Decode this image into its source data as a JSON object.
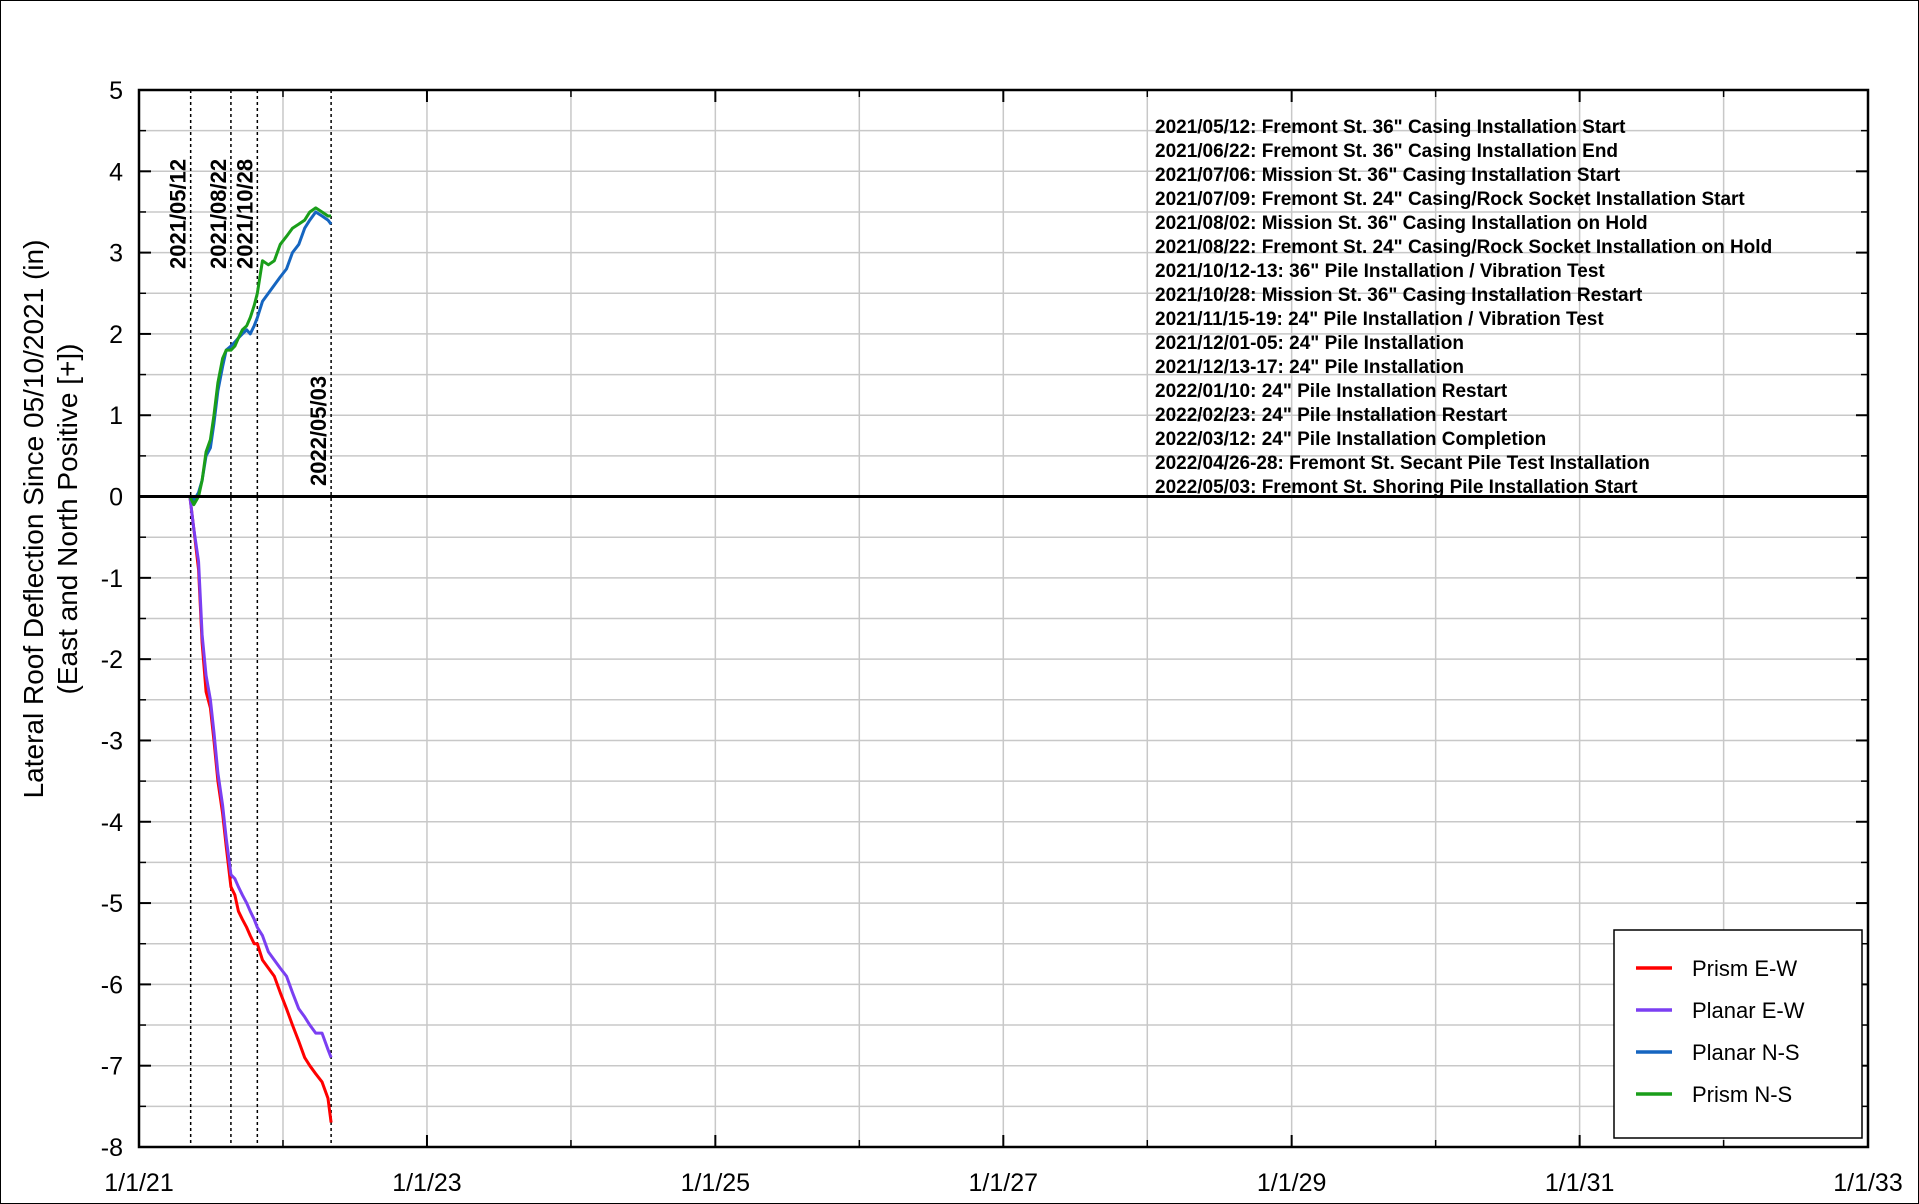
{
  "chart_data": {
    "type": "line",
    "title": "",
    "xlabel": "",
    "ylabel_line1": "Lateral Roof Deflection Since 05/10/2021 (in)",
    "ylabel_line2": "(East and North Positive [+])",
    "xlim": [
      "2021-01-01",
      "2033-01-01"
    ],
    "ylim": [
      -8,
      5
    ],
    "x_ticks": [
      {
        "date": "2021-01-01",
        "label": "1/1/21"
      },
      {
        "date": "2023-01-01",
        "label": "1/1/23"
      },
      {
        "date": "2025-01-01",
        "label": "1/1/25"
      },
      {
        "date": "2027-01-01",
        "label": "1/1/27"
      },
      {
        "date": "2029-01-01",
        "label": "1/1/29"
      },
      {
        "date": "2031-01-01",
        "label": "1/1/31"
      },
      {
        "date": "2033-01-01",
        "label": "1/1/33"
      }
    ],
    "y_ticks": [
      5,
      4,
      3,
      2,
      1,
      0,
      -1,
      -2,
      -3,
      -4,
      -5,
      -6,
      -7,
      -8
    ],
    "y_tick_labels": [
      "5",
      "4",
      "3",
      "2",
      "1",
      "0",
      "-1",
      "-2",
      "-3",
      "-4",
      "-5",
      "-6",
      "-7",
      "-8"
    ],
    "grid": true,
    "legend_position": "bottom-right",
    "event_lines": [
      {
        "date": "2021-05-12",
        "label": "2021/05/12"
      },
      {
        "date": "2021-08-22",
        "label": "2021/08/22"
      },
      {
        "date": "2021-10-28",
        "label": "2021/10/28"
      },
      {
        "date": "2022-05-03",
        "label": "2022/05/03"
      }
    ],
    "notes": [
      "2021/05/12: Fremont St. 36\" Casing Installation Start",
      "2021/06/22: Fremont St. 36\" Casing Installation End",
      "2021/07/06: Mission St.  36\" Casing Installation Start",
      "2021/07/09: Fremont St. 24\" Casing/Rock Socket Installation Start",
      "2021/08/02: Mission St.  36\" Casing Installation on Hold",
      "2021/08/22: Fremont St. 24\" Casing/Rock Socket Installation on Hold",
      "2021/10/12-13: 36\" Pile Installation / Vibration Test",
      "2021/10/28: Mission St.  36\" Casing Installation Restart",
      "2021/11/15-19: 24\" Pile Installation / Vibration Test",
      "2021/12/01-05: 24\" Pile Installation",
      "2021/12/13-17: 24\" Pile Installation",
      "2022/01/10: 24\" Pile Installation Restart",
      "2022/02/23: 24\" Pile Installation Restart",
      "2022/03/12: 24\" Pile Installation Completion",
      "2022/04/26-28: Fremont St. Secant Pile Test Installation",
      "2022/05/03: Fremont St. Shoring Pile Installation Start"
    ],
    "series": [
      {
        "name": "Prism E-W",
        "color": "#ff0000",
        "x": [
          "2021-05-10",
          "2021-05-20",
          "2021-06-01",
          "2021-06-10",
          "2021-06-20",
          "2021-07-01",
          "2021-07-10",
          "2021-07-20",
          "2021-08-01",
          "2021-08-10",
          "2021-08-22",
          "2021-09-01",
          "2021-09-10",
          "2021-09-20",
          "2021-10-01",
          "2021-10-10",
          "2021-10-20",
          "2021-10-28",
          "2021-11-10",
          "2021-11-25",
          "2021-12-10",
          "2021-12-25",
          "2022-01-10",
          "2022-01-25",
          "2022-02-10",
          "2022-02-25",
          "2022-03-10",
          "2022-03-25",
          "2022-04-10",
          "2022-04-25",
          "2022-05-03"
        ],
        "y": [
          0.0,
          -0.4,
          -0.9,
          -1.8,
          -2.4,
          -2.6,
          -3.0,
          -3.5,
          -3.9,
          -4.3,
          -4.8,
          -4.9,
          -5.1,
          -5.2,
          -5.3,
          -5.4,
          -5.5,
          -5.5,
          -5.7,
          -5.8,
          -5.9,
          -6.1,
          -6.3,
          -6.5,
          -6.7,
          -6.9,
          -7.0,
          -7.1,
          -7.2,
          -7.4,
          -7.7
        ]
      },
      {
        "name": "Planar E-W",
        "color": "#7b3ff2",
        "x": [
          "2021-05-10",
          "2021-05-20",
          "2021-06-01",
          "2021-06-10",
          "2021-06-20",
          "2021-07-01",
          "2021-07-10",
          "2021-07-20",
          "2021-08-01",
          "2021-08-10",
          "2021-08-22",
          "2021-09-01",
          "2021-09-10",
          "2021-09-20",
          "2021-10-01",
          "2021-10-10",
          "2021-10-20",
          "2021-10-28",
          "2021-11-10",
          "2021-11-25",
          "2021-12-10",
          "2021-12-25",
          "2022-01-10",
          "2022-01-25",
          "2022-02-10",
          "2022-02-25",
          "2022-03-10",
          "2022-03-25",
          "2022-04-10",
          "2022-04-25",
          "2022-05-03"
        ],
        "y": [
          0.0,
          -0.4,
          -0.8,
          -1.7,
          -2.2,
          -2.5,
          -2.9,
          -3.4,
          -3.8,
          -4.2,
          -4.65,
          -4.7,
          -4.8,
          -4.9,
          -5.0,
          -5.1,
          -5.2,
          -5.3,
          -5.4,
          -5.6,
          -5.7,
          -5.8,
          -5.9,
          -6.1,
          -6.3,
          -6.4,
          -6.5,
          -6.6,
          -6.6,
          -6.8,
          -6.9
        ]
      },
      {
        "name": "Planar N-S",
        "color": "#1565c0",
        "x": [
          "2021-05-10",
          "2021-05-20",
          "2021-06-01",
          "2021-06-10",
          "2021-06-20",
          "2021-07-01",
          "2021-07-10",
          "2021-07-20",
          "2021-08-01",
          "2021-08-10",
          "2021-08-22",
          "2021-09-01",
          "2021-09-10",
          "2021-09-20",
          "2021-10-01",
          "2021-10-10",
          "2021-10-20",
          "2021-10-28",
          "2021-11-10",
          "2021-11-25",
          "2021-12-10",
          "2021-12-25",
          "2022-01-10",
          "2022-01-25",
          "2022-02-10",
          "2022-02-25",
          "2022-03-10",
          "2022-03-25",
          "2022-04-10",
          "2022-04-25",
          "2022-05-03"
        ],
        "y": [
          0.0,
          -0.05,
          0.05,
          0.2,
          0.5,
          0.6,
          0.9,
          1.3,
          1.6,
          1.8,
          1.85,
          1.9,
          1.95,
          2.0,
          2.05,
          2.0,
          2.1,
          2.2,
          2.4,
          2.5,
          2.6,
          2.7,
          2.8,
          3.0,
          3.1,
          3.3,
          3.4,
          3.5,
          3.45,
          3.4,
          3.35
        ]
      },
      {
        "name": "Prism N-S",
        "color": "#1a9e1a",
        "x": [
          "2021-05-10",
          "2021-05-20",
          "2021-06-01",
          "2021-06-10",
          "2021-06-20",
          "2021-07-01",
          "2021-07-10",
          "2021-07-20",
          "2021-08-01",
          "2021-08-10",
          "2021-08-22",
          "2021-09-01",
          "2021-09-10",
          "2021-09-20",
          "2021-10-01",
          "2021-10-10",
          "2021-10-20",
          "2021-10-28",
          "2021-11-10",
          "2021-11-25",
          "2021-12-10",
          "2021-12-25",
          "2022-01-10",
          "2022-01-25",
          "2022-02-10",
          "2022-02-25",
          "2022-03-10",
          "2022-03-25",
          "2022-04-10",
          "2022-04-25",
          "2022-05-03"
        ],
        "y": [
          0.0,
          -0.1,
          0.0,
          0.2,
          0.55,
          0.7,
          1.0,
          1.4,
          1.7,
          1.8,
          1.8,
          1.85,
          1.95,
          2.05,
          2.1,
          2.2,
          2.35,
          2.5,
          2.9,
          2.85,
          2.9,
          3.1,
          3.2,
          3.3,
          3.35,
          3.4,
          3.5,
          3.55,
          3.5,
          3.45,
          3.45
        ]
      }
    ]
  }
}
